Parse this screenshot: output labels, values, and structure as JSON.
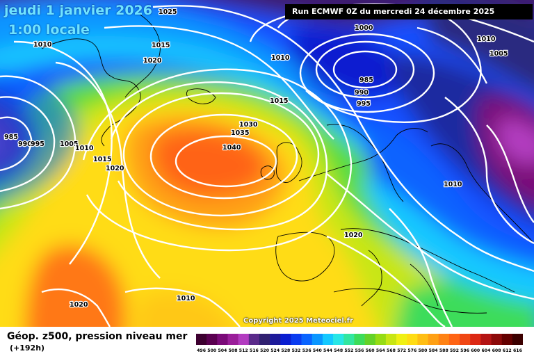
{
  "header": {
    "date": "jeudi 1 janvier 2026",
    "time": "1:00 locale",
    "run": "Run ECMWF 0Z du mercredi 24 décembre 2025"
  },
  "copyright": "Copyright 2025 Meteociel.fr",
  "footer": {
    "title": "Géop. z500, pression niveau mer",
    "subtitle": "(+192h)"
  },
  "legend": {
    "ticks": [
      "496",
      "500",
      "504",
      "508",
      "512",
      "516",
      "520",
      "524",
      "528",
      "532",
      "536",
      "540",
      "544",
      "548",
      "552",
      "556",
      "560",
      "564",
      "568",
      "572",
      "576",
      "580",
      "584",
      "588",
      "592",
      "596",
      "600",
      "604",
      "608",
      "612",
      "616"
    ],
    "colors": [
      "#3d0030",
      "#5a0050",
      "#7a0a78",
      "#9a1e9a",
      "#b23cc0",
      "#5a2a8a",
      "#302070",
      "#1d1a9a",
      "#0a1ed0",
      "#0a3cf0",
      "#0a64ff",
      "#0a96ff",
      "#14c8ff",
      "#28e6e6",
      "#32e6a0",
      "#3cdc5a",
      "#64d228",
      "#96dc14",
      "#c8e614",
      "#f0f014",
      "#ffdc14",
      "#ffbe14",
      "#ffa014",
      "#ff8214",
      "#ff6414",
      "#f04614",
      "#dc2814",
      "#b41414",
      "#8c0a0a",
      "#640000",
      "#3c0000"
    ]
  },
  "pressure_labels": [
    "1025",
    "1000",
    "1010",
    "1005",
    "1015",
    "1020",
    "985",
    "990",
    "995",
    "1030",
    "1035",
    "1040",
    "1010",
    "1015",
    "985",
    "990",
    "995",
    "1005",
    "1010",
    "1015",
    "1020",
    "1020",
    "1010",
    "1010",
    "1020",
    "1010"
  ],
  "colors": {
    "banner_bg": "#000000",
    "title_text": "#6fe3ff"
  }
}
